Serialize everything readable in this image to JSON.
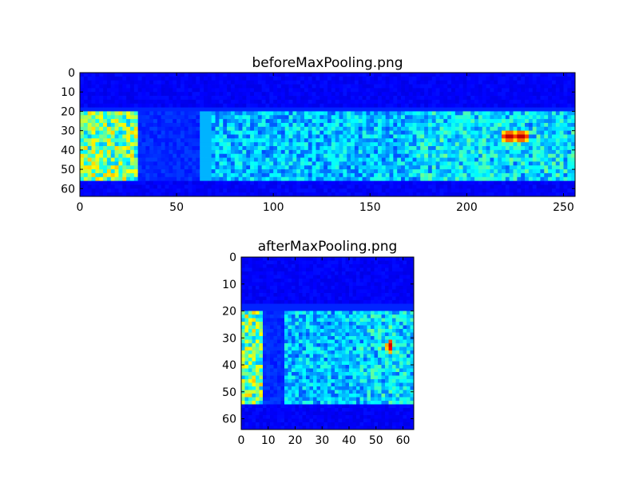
{
  "colormap": "jet",
  "chart_data": [
    {
      "type": "heatmap",
      "title": "beforeMaxPooling.png",
      "xlabel": "",
      "ylabel": "",
      "xlim": [
        0,
        256
      ],
      "ylim": [
        64,
        0
      ],
      "xticks": [
        0,
        50,
        100,
        150,
        200,
        250
      ],
      "yticks": [
        0,
        10,
        20,
        30,
        40,
        50,
        60
      ],
      "grid": false,
      "features": {
        "background_rows": [
          [
            0,
            18
          ],
          [
            56,
            64
          ]
        ],
        "signal_rows": [
          20,
          55
        ],
        "bright_columns": [
          0,
          31
        ],
        "dark_column_band": [
          31,
          62
        ],
        "vertical_line_at": 65,
        "hotspots": [
          {
            "x": 222,
            "y": 33
          },
          {
            "x": 228,
            "y": 33
          }
        ]
      }
    },
    {
      "type": "heatmap",
      "title": "afterMaxPooling.png",
      "xlabel": "",
      "ylabel": "",
      "xlim": [
        0,
        64
      ],
      "ylim": [
        64,
        0
      ],
      "xticks": [
        0,
        10,
        20,
        30,
        40,
        50,
        60
      ],
      "yticks": [
        0,
        10,
        20,
        30,
        40,
        50,
        60
      ],
      "grid": false,
      "features": {
        "background_rows": [
          [
            0,
            18
          ],
          [
            56,
            64
          ]
        ],
        "signal_rows": [
          20,
          55
        ],
        "bright_columns": [
          0,
          8
        ],
        "dark_column_band": [
          8,
          16
        ],
        "vertical_line_at": 16,
        "hotspots": [
          {
            "x": 55,
            "y": 33
          }
        ]
      }
    }
  ]
}
